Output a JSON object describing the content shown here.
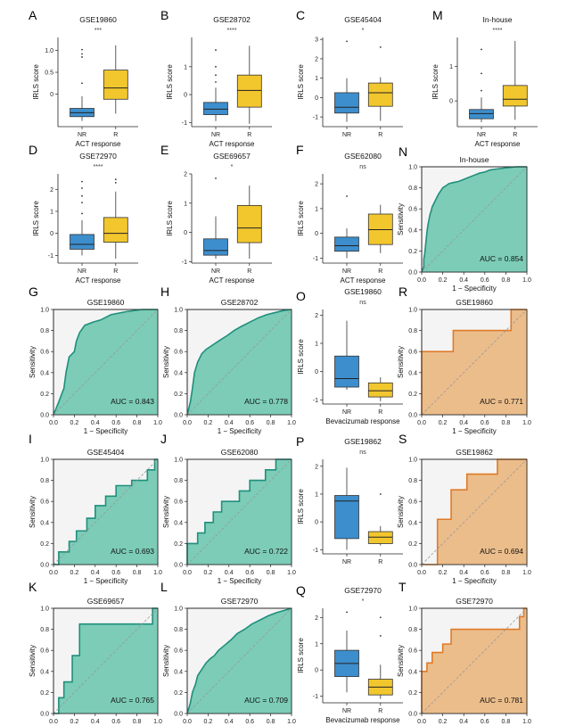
{
  "chart_data": [
    {
      "id": "A",
      "type": "box",
      "title": "GSE19860",
      "significance": "***",
      "xlabel": "ACT response",
      "ylabel": "IRLS score",
      "ylim": [
        -0.75,
        1.3
      ],
      "yticks": [
        0,
        0.5,
        1.0
      ],
      "ytick_labels": [
        "0",
        "0.5",
        "1.0"
      ],
      "categories": [
        "NR",
        "R"
      ],
      "boxes": [
        {
          "group": "NR",
          "min": -0.62,
          "q1": -0.52,
          "median": -0.43,
          "q3": -0.33,
          "max": -0.05,
          "outliers": [
            0.25,
            0.85,
            0.92,
            1.02
          ]
        },
        {
          "group": "R",
          "min": -0.45,
          "q1": -0.12,
          "median": 0.14,
          "q3": 0.55,
          "max": 1.12,
          "outliers": []
        }
      ]
    },
    {
      "id": "B",
      "type": "box",
      "title": "GSE28702",
      "significance": "****",
      "xlabel": "ACT response",
      "ylabel": "IRLS score",
      "ylim": [
        -1.15,
        2.05
      ],
      "yticks": [
        -1,
        0,
        1
      ],
      "ytick_labels": [
        "-1",
        "0",
        "1"
      ],
      "categories": [
        "NR",
        "R"
      ],
      "boxes": [
        {
          "group": "NR",
          "min": -0.95,
          "q1": -0.72,
          "median": -0.52,
          "q3": -0.28,
          "max": 0.25,
          "outliers": [
            0.45,
            0.7,
            1.0,
            1.6
          ]
        },
        {
          "group": "R",
          "min": -1.05,
          "q1": -0.45,
          "median": 0.15,
          "q3": 0.7,
          "max": 1.75,
          "outliers": []
        }
      ]
    },
    {
      "id": "C",
      "type": "box",
      "title": "GSE45404",
      "significance": "*",
      "xlabel": "",
      "ylabel": "IRLS score",
      "ylim": [
        -1.5,
        3.1
      ],
      "yticks": [
        -1,
        0,
        1,
        2,
        3
      ],
      "ytick_labels": [
        "-1",
        "0",
        "1",
        "2",
        "3"
      ],
      "categories": [
        "NR",
        "R"
      ],
      "boxes": [
        {
          "group": "NR",
          "min": -1.25,
          "q1": -0.8,
          "median": -0.5,
          "q3": 0.25,
          "max": 1.0,
          "outliers": [
            2.9
          ]
        },
        {
          "group": "R",
          "min": -1.2,
          "q1": -0.45,
          "median": 0.25,
          "q3": 0.75,
          "max": 1.05,
          "outliers": [
            2.6
          ]
        }
      ]
    },
    {
      "id": "M",
      "type": "box",
      "title": "In-house",
      "significance": "****",
      "xlabel": "ACT response",
      "ylabel": "IRLS score",
      "ylim": [
        -0.75,
        1.85
      ],
      "yticks": [
        0,
        1
      ],
      "ytick_labels": [
        "0",
        "1"
      ],
      "categories": [
        "NR",
        "R"
      ],
      "boxes": [
        {
          "group": "NR",
          "min": -0.62,
          "q1": -0.52,
          "median": -0.37,
          "q3": -0.25,
          "max": 0.1,
          "outliers": [
            0.3,
            0.8,
            1.5
          ]
        },
        {
          "group": "R",
          "min": -0.55,
          "q1": -0.15,
          "median": 0.05,
          "q3": 0.45,
          "max": 1.75,
          "outliers": []
        }
      ]
    },
    {
      "id": "D",
      "type": "box",
      "title": "GSE72970",
      "significance": "****",
      "xlabel": "ACT response",
      "ylabel": "IRLS score",
      "ylim": [
        -1.35,
        2.7
      ],
      "yticks": [
        -1,
        0,
        1,
        2
      ],
      "ytick_labels": [
        "-1",
        "0",
        "1",
        "2"
      ],
      "categories": [
        "NR",
        "R"
      ],
      "boxes": [
        {
          "group": "NR",
          "min": -1.0,
          "q1": -0.72,
          "median": -0.5,
          "q3": -0.05,
          "max": 0.6,
          "outliers": [
            0.9,
            1.4,
            1.7,
            2.05,
            2.35
          ]
        },
        {
          "group": "R",
          "min": -1.15,
          "q1": -0.4,
          "median": 0.0,
          "q3": 0.72,
          "max": 1.9,
          "outliers": [
            2.3,
            2.45
          ]
        }
      ]
    },
    {
      "id": "E",
      "type": "box",
      "title": "GSE69657",
      "significance": "*",
      "xlabel": "ACT response",
      "ylabel": "IRLS score",
      "ylim": [
        -1.05,
        2.0
      ],
      "yticks": [
        -1,
        0,
        1,
        2
      ],
      "ytick_labels": [
        "-1",
        "0",
        "1",
        "2"
      ],
      "categories": [
        "NR",
        "R"
      ],
      "boxes": [
        {
          "group": "NR",
          "min": -0.9,
          "q1": -0.78,
          "median": -0.62,
          "q3": -0.22,
          "max": 0.55,
          "outliers": [
            1.85
          ]
        },
        {
          "group": "R",
          "min": -0.9,
          "q1": -0.35,
          "median": 0.15,
          "q3": 0.92,
          "max": 1.6,
          "outliers": []
        }
      ]
    },
    {
      "id": "F",
      "type": "box",
      "title": "GSE62080",
      "significance": "ns",
      "xlabel": "ACT response",
      "ylabel": "IRLS score",
      "ylim": [
        -1.2,
        2.4
      ],
      "yticks": [
        -1,
        0,
        1,
        2
      ],
      "ytick_labels": [
        "-1",
        "0",
        "1",
        "2"
      ],
      "categories": [
        "NR",
        "R"
      ],
      "boxes": [
        {
          "group": "NR",
          "min": -1.0,
          "q1": -0.72,
          "median": -0.5,
          "q3": -0.15,
          "max": 0.2,
          "outliers": [
            1.5
          ]
        },
        {
          "group": "R",
          "min": -0.8,
          "q1": -0.45,
          "median": 0.15,
          "q3": 0.78,
          "max": 1.15,
          "outliers": []
        }
      ]
    },
    {
      "id": "N",
      "type": "roc",
      "title": "In-house",
      "auc": "AUC = 0.854",
      "color": "#7cccb7",
      "edge": "#1f8f7c",
      "xlabel": "1 − Specificity",
      "ylabel": "Sensitivity",
      "x": [
        0,
        0.02,
        0.02,
        0.03,
        0.04,
        0.05,
        0.06,
        0.07,
        0.08,
        0.09,
        0.1,
        0.12,
        0.14,
        0.16,
        0.18,
        0.2,
        0.23,
        0.26,
        0.3,
        0.35,
        0.4,
        0.45,
        0.5,
        0.55,
        0.6,
        0.65,
        0.72,
        0.8,
        0.9,
        1.0
      ],
      "y": [
        0,
        0.05,
        0.12,
        0.18,
        0.28,
        0.38,
        0.45,
        0.5,
        0.55,
        0.58,
        0.62,
        0.66,
        0.7,
        0.74,
        0.77,
        0.8,
        0.82,
        0.84,
        0.85,
        0.86,
        0.88,
        0.9,
        0.92,
        0.94,
        0.95,
        0.97,
        0.98,
        0.99,
        1.0,
        1.0
      ]
    },
    {
      "id": "G",
      "type": "roc",
      "title": "GSE19860",
      "auc": "AUC = 0.843",
      "color": "#7cccb7",
      "edge": "#1f8f7c",
      "xlabel": "1 − Specificity",
      "ylabel": "Sensitivity",
      "x": [
        0,
        0.05,
        0.08,
        0.1,
        0.12,
        0.15,
        0.2,
        0.22,
        0.25,
        0.3,
        0.38,
        0.45,
        0.55,
        0.7,
        0.85,
        1.0
      ],
      "y": [
        0,
        0.12,
        0.2,
        0.25,
        0.4,
        0.55,
        0.6,
        0.7,
        0.78,
        0.85,
        0.88,
        0.9,
        0.95,
        0.98,
        1.0,
        1.0
      ]
    },
    {
      "id": "H",
      "type": "roc",
      "title": "GSE28702",
      "auc": "AUC = 0.778",
      "color": "#7cccb7",
      "edge": "#1f8f7c",
      "xlabel": "1 − Specificity",
      "ylabel": "Sensitivity",
      "x": [
        0,
        0.03,
        0.05,
        0.07,
        0.1,
        0.14,
        0.18,
        0.24,
        0.3,
        0.38,
        0.45,
        0.52,
        0.6,
        0.68,
        0.76,
        0.84,
        0.92,
        1.0
      ],
      "y": [
        0,
        0.12,
        0.25,
        0.4,
        0.5,
        0.58,
        0.62,
        0.66,
        0.7,
        0.75,
        0.8,
        0.84,
        0.88,
        0.92,
        0.95,
        0.97,
        0.99,
        1.0
      ]
    },
    {
      "id": "O",
      "type": "box",
      "title": "GSE19860",
      "significance": "ns",
      "xlabel": "Bevacizumab response",
      "ylabel": "IRLS score",
      "ylim": [
        -1.15,
        2.2
      ],
      "yticks": [
        -1,
        0,
        1,
        2
      ],
      "ytick_labels": [
        "-1",
        "0",
        "1",
        "2"
      ],
      "categories": [
        "NR",
        "R"
      ],
      "boxes": [
        {
          "group": "NR",
          "min": -0.65,
          "q1": -0.55,
          "median": -0.25,
          "q3": 0.55,
          "max": 1.8,
          "outliers": []
        },
        {
          "group": "R",
          "min": -1.05,
          "q1": -0.9,
          "median": -0.68,
          "q3": -0.4,
          "max": -0.2,
          "outliers": []
        }
      ]
    },
    {
      "id": "R",
      "type": "roc",
      "title": "GSE19860",
      "auc": "AUC = 0.771",
      "color": "#ebbd8b",
      "edge": "#e07a27",
      "xlabel": "1 − Specificity",
      "ylabel": "Sensitivity",
      "x": [
        0,
        0,
        0.3,
        0.3,
        0.85,
        0.85,
        1.0
      ],
      "y": [
        0,
        0.6,
        0.6,
        0.8,
        0.8,
        1.0,
        1.0
      ]
    },
    {
      "id": "I",
      "type": "roc",
      "title": "GSE45404",
      "auc": "AUC = 0.693",
      "color": "#7cccb7",
      "edge": "#1f8f7c",
      "xlabel": "1 − Specificity",
      "ylabel": "Sensitivity",
      "x": [
        0,
        0.05,
        0.05,
        0.15,
        0.15,
        0.22,
        0.22,
        0.32,
        0.32,
        0.4,
        0.4,
        0.5,
        0.5,
        0.6,
        0.6,
        0.75,
        0.75,
        0.9,
        0.9,
        0.97,
        0.97,
        1.0
      ],
      "y": [
        0,
        0,
        0.12,
        0.12,
        0.22,
        0.22,
        0.32,
        0.32,
        0.44,
        0.44,
        0.56,
        0.56,
        0.65,
        0.65,
        0.75,
        0.75,
        0.8,
        0.8,
        0.9,
        0.9,
        1.0,
        1.0
      ]
    },
    {
      "id": "J",
      "type": "roc",
      "title": "GSE62080",
      "auc": "AUC = 0.722",
      "color": "#7cccb7",
      "edge": "#1f8f7c",
      "xlabel": "1 − Specificity",
      "ylabel": "Sensitivity",
      "x": [
        0,
        0,
        0.1,
        0.1,
        0.17,
        0.17,
        0.25,
        0.25,
        0.33,
        0.33,
        0.5,
        0.5,
        0.6,
        0.6,
        0.75,
        0.75,
        0.85,
        0.85,
        1.0
      ],
      "y": [
        0,
        0.2,
        0.2,
        0.3,
        0.3,
        0.4,
        0.4,
        0.5,
        0.5,
        0.6,
        0.6,
        0.7,
        0.7,
        0.8,
        0.8,
        0.9,
        0.9,
        1.0,
        1.0
      ]
    },
    {
      "id": "P",
      "type": "box",
      "title": "GSE19862",
      "significance": "ns",
      "xlabel": "",
      "ylabel": "IRLS score",
      "ylim": [
        -1.15,
        2.25
      ],
      "yticks": [
        -1,
        0,
        1,
        2
      ],
      "ytick_labels": [
        "-1",
        "0",
        "1",
        "2"
      ],
      "categories": [
        "NR",
        "R"
      ],
      "boxes": [
        {
          "group": "NR",
          "min": -1.0,
          "q1": -0.6,
          "median": 0.75,
          "q3": 0.95,
          "max": 1.95,
          "outliers": []
        },
        {
          "group": "R",
          "min": -0.85,
          "q1": -0.78,
          "median": -0.55,
          "q3": -0.35,
          "max": -0.15,
          "outliers": [
            1.0
          ]
        }
      ]
    },
    {
      "id": "S",
      "type": "roc",
      "title": "GSE19862",
      "auc": "AUC = 0.694",
      "color": "#ebbd8b",
      "edge": "#e07a27",
      "xlabel": "1 − Specificity",
      "ylabel": "Sensitivity",
      "x": [
        0,
        0.15,
        0.15,
        0.28,
        0.28,
        0.43,
        0.43,
        0.72,
        0.72,
        1.0
      ],
      "y": [
        0,
        0,
        0.43,
        0.43,
        0.71,
        0.71,
        0.86,
        0.86,
        1.0,
        1.0
      ]
    },
    {
      "id": "K",
      "type": "roc",
      "title": "GSE69657",
      "auc": "AUC = 0.765",
      "color": "#7cccb7",
      "edge": "#1f8f7c",
      "xlabel": "1 − Specificity",
      "ylabel": "Sensitivity",
      "x": [
        0,
        0.05,
        0.05,
        0.1,
        0.1,
        0.18,
        0.18,
        0.25,
        0.25,
        0.95,
        0.95,
        1.0
      ],
      "y": [
        0,
        0,
        0.15,
        0.15,
        0.3,
        0.3,
        0.55,
        0.55,
        0.85,
        0.85,
        1.0,
        1.0
      ]
    },
    {
      "id": "L",
      "type": "roc",
      "title": "GSE72970",
      "auc": "AUC = 0.709",
      "color": "#7cccb7",
      "edge": "#1f8f7c",
      "xlabel": "1 − Specificity",
      "ylabel": "Sensitivity",
      "x": [
        0,
        0.03,
        0.05,
        0.08,
        0.1,
        0.14,
        0.18,
        0.22,
        0.26,
        0.3,
        0.36,
        0.42,
        0.48,
        0.55,
        0.62,
        0.7,
        0.78,
        0.86,
        0.93,
        1.0
      ],
      "y": [
        0,
        0.1,
        0.2,
        0.28,
        0.36,
        0.42,
        0.48,
        0.52,
        0.55,
        0.6,
        0.65,
        0.7,
        0.76,
        0.8,
        0.85,
        0.89,
        0.93,
        0.96,
        0.98,
        1.0
      ]
    },
    {
      "id": "Q",
      "type": "box",
      "title": "GSE72970",
      "significance": "*",
      "xlabel": "Bevacizumab response",
      "ylabel": "IRLS score",
      "ylim": [
        -1.25,
        2.35
      ],
      "yticks": [
        -1,
        0,
        1,
        2
      ],
      "ytick_labels": [
        "-1",
        "0",
        "1",
        "2"
      ],
      "categories": [
        "NR",
        "R"
      ],
      "boxes": [
        {
          "group": "NR",
          "min": -0.85,
          "q1": -0.25,
          "median": 0.25,
          "q3": 0.75,
          "max": 1.5,
          "outliers": [
            2.2
          ]
        },
        {
          "group": "R",
          "min": -1.1,
          "q1": -0.95,
          "median": -0.65,
          "q3": -0.35,
          "max": 0.2,
          "outliers": [
            1.3,
            2.0
          ]
        }
      ]
    },
    {
      "id": "T",
      "type": "roc",
      "title": "GSE72970",
      "auc": "AUC = 0.781",
      "color": "#ebbd8b",
      "edge": "#e07a27",
      "xlabel": "1 − Specificity",
      "ylabel": "Sensitivity",
      "x": [
        0,
        0,
        0.05,
        0.05,
        0.1,
        0.1,
        0.2,
        0.2,
        0.28,
        0.28,
        0.93,
        0.93,
        0.97,
        0.97,
        1.0
      ],
      "y": [
        0,
        0.4,
        0.4,
        0.48,
        0.48,
        0.58,
        0.58,
        0.66,
        0.66,
        0.8,
        0.8,
        0.92,
        0.92,
        1.0,
        1.0
      ]
    }
  ],
  "colors": {
    "nr_box": "#3d8ecd",
    "r_box": "#f2c72e",
    "roc_teal_fill": "#7cccb7",
    "roc_teal_edge": "#1f8f7c",
    "roc_orange_fill": "#ebbd8b",
    "roc_orange_edge": "#e07a27",
    "plot_bg": "#f4f4f4"
  },
  "roc_ticks": [
    "0.0",
    "0.2",
    "0.4",
    "0.6",
    "0.8",
    "1.0"
  ]
}
